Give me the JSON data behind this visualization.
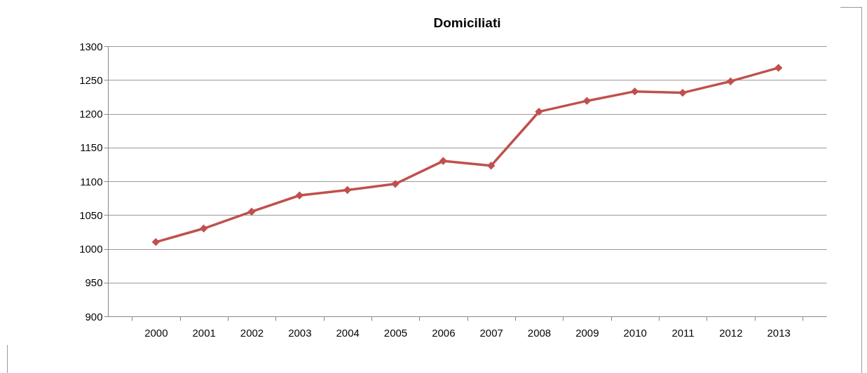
{
  "chart_data": {
    "type": "line",
    "title": "Domiciliati",
    "categories": [
      "2000",
      "2001",
      "2002",
      "2003",
      "2004",
      "2005",
      "2006",
      "2007",
      "2008",
      "2009",
      "2010",
      "2011",
      "2012",
      "2013"
    ],
    "series": [
      {
        "color": "#c0504d",
        "values": [
          1010,
          1030,
          1055,
          1079,
          1087,
          1096,
          1130,
          1123,
          1203,
          1219,
          1233,
          1231,
          1248,
          1268
        ]
      }
    ],
    "ylim": [
      900,
      1300
    ],
    "yticks": [
      900,
      950,
      1000,
      1050,
      1100,
      1150,
      1200,
      1250,
      1300
    ],
    "grid": "y",
    "marker": "diamond"
  }
}
